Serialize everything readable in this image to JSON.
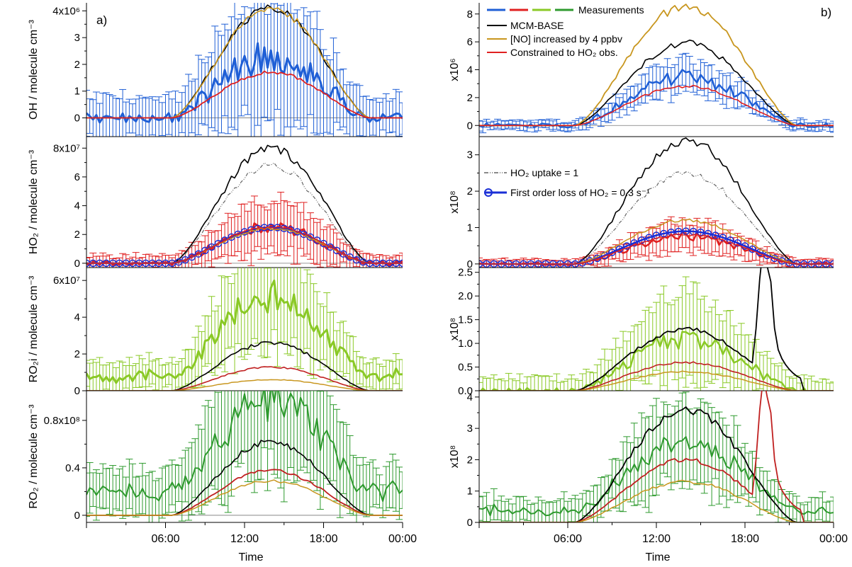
{
  "figure": {
    "xlabel": "Time",
    "xticks": [
      "06:00",
      "12:00",
      "18:00",
      "00:00"
    ],
    "panel_labels": {
      "left": "a)",
      "right": "b)"
    }
  },
  "legend": {
    "measurements": "Measurements",
    "base": "MCM-BASE",
    "no": "[NO] increased by 4 ppbv",
    "ho2c": "Constrained to HO₂ obs.",
    "uptake": "HO₂ uptake = 1",
    "loss": "First order loss of HO₂ = 0.3 s⁻¹",
    "measurement_colors": [
      "#1f5fd6",
      "#e02020",
      "#8ac926",
      "#2e9a2e"
    ]
  },
  "chart_data": [
    {
      "id": "a1",
      "type": "line",
      "ylabel": "OH / molecule cm⁻³",
      "ylim": [
        -0.7,
        4.3
      ],
      "yticks": [
        0,
        1,
        2,
        3,
        4
      ],
      "tick_labels": [
        "0",
        "1",
        "2",
        "3",
        "4x10⁶"
      ],
      "series": [
        {
          "role": "meas",
          "color": "#1f5fd6",
          "peak": 2.3,
          "err": 2.2,
          "noise": 0.45,
          "w": 3
        },
        {
          "role": "base",
          "color": "#000000",
          "peak": 4.1,
          "w": 1.6
        },
        {
          "role": "no",
          "color": "#c8961e",
          "peak": 4.1,
          "w": 1.6
        },
        {
          "role": "ho2c",
          "color": "#e02020",
          "peak": 1.7,
          "w": 1.8
        }
      ]
    },
    {
      "id": "a2",
      "type": "line",
      "ylabel": "HO₂ / molecule cm⁻³",
      "ylim": [
        -0.3,
        8.8
      ],
      "yticks": [
        0,
        2,
        4,
        6,
        8
      ],
      "tick_labels": [
        "0",
        "2",
        "4",
        "6",
        "8x10⁷"
      ],
      "series": [
        {
          "role": "meas",
          "color": "#e02020",
          "peak": 2.5,
          "err": 1.6,
          "noise": 0.3,
          "w": 3
        },
        {
          "role": "base",
          "color": "#000000",
          "peak": 8.0,
          "w": 1.6
        },
        {
          "role": "uptake",
          "color": "#666666",
          "peak": 6.8,
          "w": 1.2
        },
        {
          "role": "loss",
          "color": "#1a2fd6",
          "peak": 2.5,
          "w": 2.5
        },
        {
          "role": "no",
          "color": "#c8961e",
          "peak": 2.4,
          "w": 1.5
        },
        {
          "role": "ho2c",
          "color": "#e02020",
          "peak": 2.5,
          "w": 1.5
        }
      ]
    },
    {
      "id": "a3",
      "type": "line",
      "ylabel": "RO₂i / molecule cm⁻³",
      "ylim": [
        0,
        6.7
      ],
      "yticks": [
        0,
        2,
        4,
        6
      ],
      "tick_labels": [
        "0",
        "2",
        "4",
        "6x10⁷"
      ],
      "series": [
        {
          "role": "meas",
          "color": "#8ac926",
          "peak": 4.3,
          "err": 2.4,
          "noise": 0.55,
          "w": 3,
          "base": 1.0
        },
        {
          "role": "base",
          "color": "#000000",
          "peak": 2.6,
          "w": 1.6
        },
        {
          "role": "ho2c",
          "color": "#c02020",
          "peak": 1.3,
          "w": 1.6
        },
        {
          "role": "no",
          "color": "#c8961e",
          "peak": 0.6,
          "w": 1.5
        }
      ]
    },
    {
      "id": "a4",
      "type": "line",
      "ylabel": "RO₂ / molecule cm⁻³",
      "ylim": [
        -0.06,
        1.05
      ],
      "yticks": [
        0,
        0.4,
        0.8
      ],
      "tick_labels": [
        "0",
        "0.4",
        "0.8x10⁸"
      ],
      "series": [
        {
          "role": "meas",
          "color": "#2e9a2e",
          "peak": 0.8,
          "err": 0.55,
          "noise": 0.12,
          "w": 2,
          "base": 0.25
        },
        {
          "role": "base",
          "color": "#000000",
          "peak": 0.62,
          "w": 1.6
        },
        {
          "role": "ho2c",
          "color": "#c02020",
          "peak": 0.38,
          "w": 1.8
        },
        {
          "role": "no",
          "color": "#c8961e",
          "peak": 0.29,
          "w": 1.5
        }
      ]
    },
    {
      "id": "b1",
      "type": "line",
      "ylabel": "x10⁶",
      "ylim": [
        -0.8,
        8.8
      ],
      "yticks": [
        0,
        2,
        4,
        6,
        8
      ],
      "tick_labels": [
        "0",
        "2",
        "4",
        "6",
        "8"
      ],
      "series": [
        {
          "role": "meas",
          "color": "#1f5fd6",
          "peak": 3.5,
          "err": 1.0,
          "noise": 0.4,
          "w": 2.5
        },
        {
          "role": "base",
          "color": "#000000",
          "peak": 5.9,
          "w": 1.6
        },
        {
          "role": "no",
          "color": "#c8961e",
          "peak": 8.6,
          "w": 1.8
        },
        {
          "role": "ho2c",
          "color": "#e02020",
          "peak": 2.8,
          "w": 1.6
        }
      ]
    },
    {
      "id": "b2",
      "type": "line",
      "ylabel": "x10⁸",
      "ylim": [
        -0.1,
        3.5
      ],
      "yticks": [
        0,
        1,
        2,
        3
      ],
      "tick_labels": [
        "0",
        "1",
        "2",
        "3"
      ],
      "series": [
        {
          "role": "meas",
          "color": "#e02020",
          "peak": 0.75,
          "err": 0.35,
          "noise": 0.1,
          "w": 2.5
        },
        {
          "role": "base",
          "color": "#000000",
          "peak": 3.4,
          "w": 1.6
        },
        {
          "role": "uptake",
          "color": "#666666",
          "peak": 2.5,
          "w": 1.2
        },
        {
          "role": "loss",
          "color": "#1a2fd6",
          "peak": 0.9,
          "w": 2.5
        },
        {
          "role": "no",
          "color": "#c8961e",
          "peak": 1.2,
          "w": 1.5
        },
        {
          "role": "ho2c",
          "color": "#e02020",
          "peak": 0.8,
          "w": 1.5
        }
      ]
    },
    {
      "id": "b3",
      "type": "line",
      "ylabel": "x10⁸",
      "ylim": [
        0,
        2.6
      ],
      "yticks": [
        0,
        0.5,
        1.0,
        1.5,
        2.0,
        2.5
      ],
      "tick_labels": [
        "0.0",
        "0.5",
        "1.0",
        "1.5",
        "2.0",
        "2.5"
      ],
      "series": [
        {
          "role": "meas",
          "color": "#8ac926",
          "peak": 1.1,
          "err": 0.8,
          "noise": 0.15,
          "w": 2.5
        },
        {
          "role": "base",
          "color": "#000000",
          "peak": 1.3,
          "w": 1.8,
          "evening": 2.7
        },
        {
          "role": "ho2c",
          "color": "#c02020",
          "peak": 0.6,
          "w": 1.6
        },
        {
          "role": "no",
          "color": "#c8961e",
          "peak": 0.4,
          "w": 1.5
        }
      ]
    },
    {
      "id": "b4",
      "type": "line",
      "ylabel": "x10⁸",
      "ylim": [
        0,
        4.2
      ],
      "yticks": [
        0,
        1,
        2,
        3,
        4
      ],
      "tick_labels": [
        "0",
        "1",
        "2",
        "3",
        "4"
      ],
      "series": [
        {
          "role": "meas",
          "color": "#2e9a2e",
          "peak": 2.1,
          "err": 1.2,
          "noise": 0.25,
          "w": 2,
          "base": 0.5
        },
        {
          "role": "base",
          "color": "#000000",
          "peak": 3.6,
          "w": 1.8
        },
        {
          "role": "ho2c",
          "color": "#c02020",
          "peak": 2.0,
          "w": 1.8,
          "evening": 4.1
        },
        {
          "role": "no",
          "color": "#c8961e",
          "peak": 1.3,
          "w": 1.5
        }
      ]
    }
  ]
}
